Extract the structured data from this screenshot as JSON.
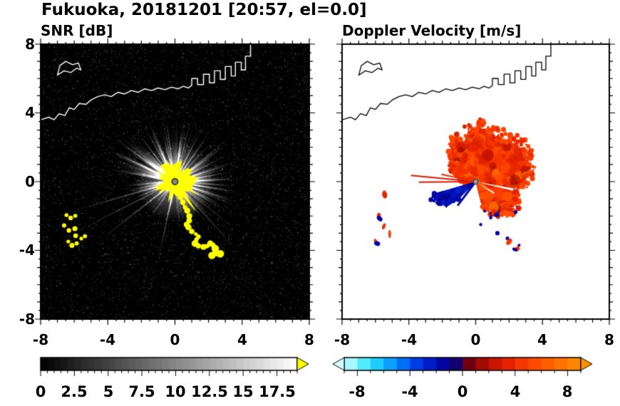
{
  "header": {
    "title": "Fukuoka, 20181201 [20:57, el=0.0]"
  },
  "panels": {
    "snr": {
      "title": "SNR [dB]",
      "xtick_labels": [
        "-8",
        "-4",
        "0",
        "4",
        "8"
      ],
      "ytick_labels": [
        "8",
        "4",
        "0",
        "-4",
        "-8"
      ],
      "colorbar_labels": [
        "0",
        "2.5",
        "5",
        "7.5",
        "10",
        "12.5",
        "15",
        "17.5"
      ]
    },
    "velocity": {
      "title": "Doppler Velocity [m/s]",
      "xtick_labels": [
        "-8",
        "-4",
        "0",
        "4",
        "8"
      ],
      "colorbar_labels": [
        "-8",
        "-4",
        "0",
        "4",
        "8"
      ]
    }
  },
  "coastline_km": {
    "mainland": [
      [
        -8,
        3.6
      ],
      [
        -7.5,
        3.75
      ],
      [
        -7.2,
        3.6
      ],
      [
        -6.9,
        3.95
      ],
      [
        -6.55,
        3.85
      ],
      [
        -6.3,
        4.3
      ],
      [
        -6.0,
        4.2
      ],
      [
        -5.7,
        4.55
      ],
      [
        -5.3,
        4.5
      ],
      [
        -5.0,
        4.75
      ],
      [
        -4.6,
        4.95
      ],
      [
        -4.2,
        5.05
      ],
      [
        -3.8,
        4.95
      ],
      [
        -3.4,
        5.2
      ],
      [
        -3.0,
        5.1
      ],
      [
        -2.6,
        5.3
      ],
      [
        -2.2,
        5.2
      ],
      [
        -1.8,
        5.4
      ],
      [
        -1.4,
        5.3
      ],
      [
        -1.0,
        5.45
      ],
      [
        -0.6,
        5.35
      ],
      [
        -0.2,
        5.5
      ],
      [
        0.2,
        5.4
      ],
      [
        0.5,
        5.55
      ],
      [
        0.8,
        5.45
      ],
      [
        1.0,
        5.6
      ],
      [
        1.0,
        6.0
      ],
      [
        1.35,
        6.0
      ],
      [
        1.35,
        5.65
      ],
      [
        1.7,
        5.65
      ],
      [
        1.7,
        6.25
      ],
      [
        2.05,
        6.25
      ],
      [
        2.05,
        5.75
      ],
      [
        2.35,
        5.75
      ],
      [
        2.35,
        6.45
      ],
      [
        2.7,
        6.45
      ],
      [
        2.7,
        5.95
      ],
      [
        3.0,
        5.95
      ],
      [
        3.0,
        6.7
      ],
      [
        3.35,
        6.7
      ],
      [
        3.35,
        6.15
      ],
      [
        3.6,
        6.15
      ],
      [
        3.6,
        6.95
      ],
      [
        3.95,
        6.95
      ],
      [
        3.95,
        6.5
      ],
      [
        4.2,
        6.5
      ],
      [
        4.2,
        7.3
      ],
      [
        4.5,
        7.3
      ],
      [
        4.5,
        8.0
      ]
    ],
    "island": [
      [
        -7.0,
        6.2
      ],
      [
        -6.6,
        6.45
      ],
      [
        -6.2,
        6.35
      ],
      [
        -5.85,
        6.6
      ],
      [
        -5.6,
        6.5
      ],
      [
        -5.75,
        6.9
      ],
      [
        -6.1,
        6.8
      ],
      [
        -6.5,
        7.0
      ],
      [
        -6.85,
        6.75
      ],
      [
        -7.0,
        6.2
      ]
    ]
  },
  "chart_data": [
    {
      "type": "heatmap",
      "title": "SNR [dB]",
      "xlim": [
        -8,
        8
      ],
      "ylim": [
        -8,
        8
      ],
      "xticks": [
        -8,
        -4,
        0,
        4,
        8
      ],
      "yticks": [
        -8,
        -4,
        0,
        4,
        8
      ],
      "grid": false,
      "background_color": "#000000",
      "radar_site_km": [
        0,
        0
      ],
      "colorbar": {
        "orientation": "horizontal",
        "range": [
          0,
          19
        ],
        "tick_step": 0.5,
        "label_values": [
          0,
          2.5,
          5,
          7.5,
          10,
          12.5,
          15,
          17.5
        ],
        "colormap": "black-to-white grayscale",
        "over_arrow_color": "#ffff00"
      },
      "content_summary": "Radar PPI of SNR centered on radar at origin: black noise-speckled field, bright white radial spokes out to ~4 km, saturated yellow echo core ~1.3 km with spiky yellow clutter band trailing to lower-right (to about (2.5,-4.3)), yellow coastal clutter patches near (-6,-2) to (-5.5,-3.8), white coastline drawn along the northern shore with harbor piers to the northeast",
      "render": {
        "seed": 77,
        "noise_speckles": 4200,
        "spoke_sectors": [
          {
            "deg0": 15,
            "deg1": 95,
            "count": 46,
            "len_km": [
              2.4,
              4.2
            ]
          },
          {
            "deg0": 95,
            "deg1": 170,
            "count": 50,
            "len_km": [
              2.4,
              4.4
            ]
          },
          {
            "deg0": -25,
            "deg1": 15,
            "count": 26,
            "len_km": [
              2.2,
              3.9
            ]
          },
          {
            "deg0": -80,
            "deg1": -25,
            "count": 24,
            "len_km": [
              1.8,
              3.9
            ]
          },
          {
            "deg0": 170,
            "deg1": 205,
            "count": 15,
            "len_km": [
              1.8,
              3.4
            ]
          },
          {
            "deg0": 205,
            "deg1": 280,
            "count": 15,
            "len_km": [
              1.2,
              2.8
            ]
          }
        ],
        "long_spokes_deg_km": [
          [
            196,
            6.4
          ],
          [
            207,
            6.8
          ],
          [
            218,
            5.5
          ],
          [
            258,
            5.0
          ],
          [
            312,
            5.9
          ],
          [
            322,
            5.1
          ],
          [
            338,
            4.6
          ]
        ],
        "core_radius_km": [
          0.6,
          1.35
        ],
        "core_spikes_deg_km": [
          [
            -55,
            2.2
          ],
          [
            -70,
            1.9
          ],
          [
            -30,
            1.7
          ],
          [
            10,
            1.5
          ],
          [
            80,
            1.3
          ],
          [
            110,
            1.4
          ],
          [
            150,
            1.3
          ],
          [
            215,
            1.2
          ]
        ],
        "clutter_chain_km": [
          [
            0.3,
            -0.9
          ],
          [
            0.6,
            -1.5
          ],
          [
            0.85,
            -2.0
          ],
          [
            0.7,
            -2.5
          ],
          [
            1.0,
            -2.9
          ],
          [
            1.4,
            -3.2
          ],
          [
            1.2,
            -3.6
          ],
          [
            1.7,
            -3.8
          ],
          [
            2.1,
            -3.6
          ],
          [
            2.4,
            -3.9
          ],
          [
            2.2,
            -4.3
          ],
          [
            2.7,
            -4.2
          ]
        ],
        "clutter_patches_km": [
          [
            [
              -6.5,
              -1.9
            ],
            [
              -6.2,
              -2.1
            ],
            [
              -5.95,
              -2.0
            ]
          ],
          [
            [
              -6.6,
              -2.6
            ],
            [
              -6.3,
              -2.8
            ],
            [
              -6.0,
              -2.7
            ]
          ],
          [
            [
              -5.9,
              -3.1
            ],
            [
              -5.6,
              -3.3
            ],
            [
              -5.35,
              -3.2
            ]
          ],
          [
            [
              -6.4,
              -3.5
            ],
            [
              -6.1,
              -3.7
            ],
            [
              -5.8,
              -3.6
            ]
          ]
        ]
      }
    },
    {
      "type": "heatmap",
      "title": "Doppler Velocity [m/s]",
      "xlim": [
        -8,
        8
      ],
      "ylim": [
        -8,
        8
      ],
      "xticks": [
        -8,
        -4,
        0,
        4,
        8
      ],
      "yticks": [
        -8,
        -4,
        0,
        4,
        8
      ],
      "grid": false,
      "background_color": "#ffffff",
      "radar_site_km": [
        0,
        0
      ],
      "colorbar": {
        "orientation": "horizontal",
        "range": [
          -9,
          9
        ],
        "tick_step": 1,
        "label_values": [
          -8,
          -4,
          0,
          4,
          8
        ],
        "colormap": "cyan-blue-navy / maroon-red-orange diverging",
        "under_arrow": true,
        "over_arrow": true
      },
      "colormap_stops": [
        [
          -9,
          210,
          255,
          255
        ],
        [
          -7,
          40,
          225,
          255
        ],
        [
          -5,
          0,
          140,
          255
        ],
        [
          -3.5,
          0,
          60,
          230
        ],
        [
          -2,
          0,
          10,
          185
        ],
        [
          -0.6,
          10,
          0,
          120
        ],
        [
          0.6,
          120,
          0,
          10
        ],
        [
          2,
          185,
          15,
          0
        ],
        [
          3.5,
          230,
          35,
          0
        ],
        [
          5,
          255,
          65,
          0
        ],
        [
          7,
          255,
          105,
          0
        ],
        [
          9,
          255,
          145,
          0
        ]
      ],
      "content_summary": "Doppler velocity PPI: mottled red-orange outbound echo (+3 to +6 m/s) fanning to ~3.5-3.9 km around the radar from WNW clockwise through N, E to SSW; dark navy inbound wedge (about -1 to -3 m/s color class) toward WSW out to ~2.7 km; two thin red rays due west; scattered red/navy coastal clutter specks near (-5.5,-1) to (-6,-3.5) and south of the echo; black coastline along northern shore",
      "render": {
        "seed": 99,
        "echo_anchors_deg_km": [
          [
            -76,
            1.5
          ],
          [
            -60,
            2.6
          ],
          [
            -45,
            3.2
          ],
          [
            -30,
            2.9
          ],
          [
            -15,
            2.6
          ],
          [
            0,
            3.2
          ],
          [
            10,
            3.6
          ],
          [
            25,
            3.9
          ],
          [
            45,
            3.6
          ],
          [
            60,
            3.6
          ],
          [
            80,
            3.5
          ],
          [
            90,
            3.4
          ],
          [
            105,
            3.1
          ],
          [
            120,
            2.7
          ],
          [
            135,
            2.3
          ],
          [
            150,
            1.8
          ],
          [
            165,
            1.2
          ],
          [
            180,
            0.7
          ],
          [
            196,
            0.45
          ]
        ],
        "inbound_wedge_deg_km": [
          [
            196,
            2.6
          ],
          [
            202,
            2.75
          ],
          [
            208,
            2.65
          ],
          [
            214,
            2.5
          ],
          [
            220,
            2.25
          ],
          [
            226,
            1.5
          ]
        ],
        "inbound_streak_deg_km": [
          233,
          1.8
        ],
        "thin_rays_deg_km_v": [
          [
            174.5,
            3.9,
            3
          ],
          [
            180.5,
            3.4,
            3
          ],
          [
            168,
            2.1,
            4
          ]
        ],
        "white_notches_deg_km": [
          [
            -12,
            2.3
          ],
          [
            -32,
            1.3
          ]
        ],
        "navy_flecks_km": [
          [
            0.9,
            -2.1
          ],
          [
            0.3,
            -2.5
          ],
          [
            1.9,
            -3.3
          ],
          [
            2.6,
            -3.7
          ],
          [
            1.3,
            -3.0
          ]
        ],
        "west_specks_km": [
          {
            "x": -5.45,
            "y": -0.75,
            "c": "red"
          },
          {
            "x": -5.8,
            "y": -2.0,
            "c": "red"
          },
          {
            "x": -5.75,
            "y": -2.15,
            "c": "navy"
          },
          {
            "x": -5.5,
            "y": -2.6,
            "c": "red"
          },
          {
            "x": -5.15,
            "y": -3.05,
            "c": "red"
          },
          {
            "x": -6.0,
            "y": -3.45,
            "c": "red"
          },
          {
            "x": -5.9,
            "y": -3.6,
            "c": "navy"
          },
          {
            "x": 2.0,
            "y": -3.5,
            "c": "red"
          },
          {
            "x": 2.5,
            "y": -3.9,
            "c": "red"
          },
          {
            "x": 2.35,
            "y": -3.95,
            "c": "navy"
          }
        ]
      }
    }
  ]
}
